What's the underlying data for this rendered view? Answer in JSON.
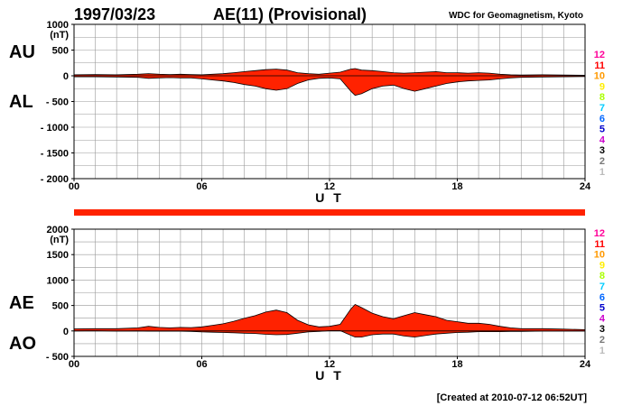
{
  "header": {
    "date": "1997/03/23",
    "title": "AE(11) (Provisional)",
    "source": "WDC for Geomagnetism, Kyoto"
  },
  "footer": {
    "created": "[Created at 2010-07-12 06:52UT]"
  },
  "colors": {
    "fill": "#ff2200",
    "outline": "#000000",
    "grid": "#999999",
    "band": "#ff2200"
  },
  "station_legend": [
    {
      "label": "12",
      "color": "#ff0099"
    },
    {
      "label": "11",
      "color": "#ff0000"
    },
    {
      "label": "10",
      "color": "#ff9900"
    },
    {
      "label": "9",
      "color": "#ffee00"
    },
    {
      "label": "8",
      "color": "#aaff00"
    },
    {
      "label": "7",
      "color": "#00ccff"
    },
    {
      "label": "6",
      "color": "#0066ff"
    },
    {
      "label": "5",
      "color": "#0000cc"
    },
    {
      "label": "4",
      "color": "#cc00cc"
    },
    {
      "label": "3",
      "color": "#000000"
    },
    {
      "label": "2",
      "color": "#777777"
    },
    {
      "label": "1",
      "color": "#bbbbbb"
    }
  ],
  "chart_data": [
    {
      "type": "area",
      "name": "AU/AL panel",
      "upper_label": "AU",
      "lower_label": "AL",
      "unit_label": "(nT)",
      "ylim": [
        -2000,
        1000
      ],
      "yticks": [
        1000,
        500,
        0,
        -500,
        -1000,
        -1500,
        -2000
      ],
      "ytick_labels": [
        "1000",
        "500",
        "0",
        "- 500",
        "- 1000",
        "- 1500",
        "- 2000"
      ],
      "xlim": [
        0,
        24
      ],
      "xticks": [
        0,
        6,
        12,
        18,
        24
      ],
      "xtick_labels": [
        "00",
        "06",
        "12",
        "18",
        "24"
      ],
      "xlabel": "U T",
      "grid": true,
      "x": [
        0,
        1,
        2,
        3,
        3.5,
        4,
        4.5,
        5,
        5.5,
        6,
        6.5,
        7,
        7.5,
        8,
        8.5,
        9,
        9.5,
        10,
        10.5,
        11,
        11.5,
        12,
        12.5,
        13,
        13.2,
        13.5,
        14,
        14.5,
        15,
        15.5,
        16,
        16.5,
        17,
        17.5,
        18,
        18.5,
        19,
        19.5,
        20,
        20.5,
        21,
        22,
        23,
        24
      ],
      "series": [
        {
          "name": "AU",
          "values": [
            20,
            25,
            20,
            30,
            40,
            30,
            25,
            30,
            25,
            20,
            30,
            40,
            60,
            80,
            100,
            120,
            130,
            110,
            60,
            40,
            30,
            50,
            70,
            130,
            140,
            110,
            100,
            80,
            60,
            50,
            60,
            70,
            80,
            60,
            60,
            50,
            60,
            50,
            30,
            20,
            15,
            20,
            15,
            10
          ]
        },
        {
          "name": "AL",
          "values": [
            -20,
            -20,
            -25,
            -30,
            -50,
            -40,
            -35,
            -40,
            -40,
            -60,
            -80,
            -100,
            -130,
            -170,
            -200,
            -250,
            -280,
            -250,
            -150,
            -80,
            -50,
            -40,
            -60,
            -300,
            -380,
            -350,
            -250,
            -200,
            -180,
            -250,
            -300,
            -250,
            -200,
            -150,
            -120,
            -100,
            -90,
            -80,
            -60,
            -40,
            -30,
            -25,
            -20,
            -15
          ]
        }
      ]
    },
    {
      "type": "area",
      "name": "AE/AO panel",
      "upper_label": "AE",
      "lower_label": "AO",
      "unit_label": "(nT)",
      "ylim": [
        -500,
        2000
      ],
      "yticks": [
        2000,
        1500,
        1000,
        500,
        0,
        -500
      ],
      "ytick_labels": [
        "2000",
        "1500",
        "1000",
        "500",
        "0",
        "- 500"
      ],
      "xlim": [
        0,
        24
      ],
      "xticks": [
        0,
        6,
        12,
        18,
        24
      ],
      "xtick_labels": [
        "00",
        "06",
        "12",
        "18",
        "24"
      ],
      "xlabel": "U T",
      "grid": true,
      "x": [
        0,
        1,
        2,
        3,
        3.5,
        4,
        4.5,
        5,
        5.5,
        6,
        6.5,
        7,
        7.5,
        8,
        8.5,
        9,
        9.5,
        10,
        10.5,
        11,
        11.5,
        12,
        12.5,
        13,
        13.2,
        13.5,
        14,
        14.5,
        15,
        15.5,
        16,
        16.5,
        17,
        17.5,
        18,
        18.5,
        19,
        19.5,
        20,
        20.5,
        21,
        22,
        23,
        24
      ],
      "series": [
        {
          "name": "AE",
          "values": [
            40,
            45,
            45,
            60,
            90,
            70,
            60,
            70,
            65,
            80,
            110,
            140,
            190,
            250,
            300,
            370,
            410,
            360,
            210,
            120,
            80,
            90,
            130,
            430,
            520,
            460,
            350,
            280,
            240,
            300,
            360,
            320,
            280,
            210,
            180,
            150,
            150,
            130,
            90,
            60,
            45,
            45,
            35,
            25
          ]
        },
        {
          "name": "AO",
          "values": [
            0,
            3,
            -3,
            0,
            -5,
            -5,
            -5,
            -5,
            -8,
            -20,
            -25,
            -30,
            -35,
            -45,
            -50,
            -65,
            -75,
            -70,
            -45,
            -20,
            -10,
            5,
            5,
            -85,
            -120,
            -120,
            -75,
            -60,
            -60,
            -100,
            -120,
            -90,
            -60,
            -45,
            -30,
            -25,
            -15,
            -15,
            -15,
            -10,
            -8,
            -3,
            -3,
            -3
          ]
        }
      ]
    }
  ]
}
